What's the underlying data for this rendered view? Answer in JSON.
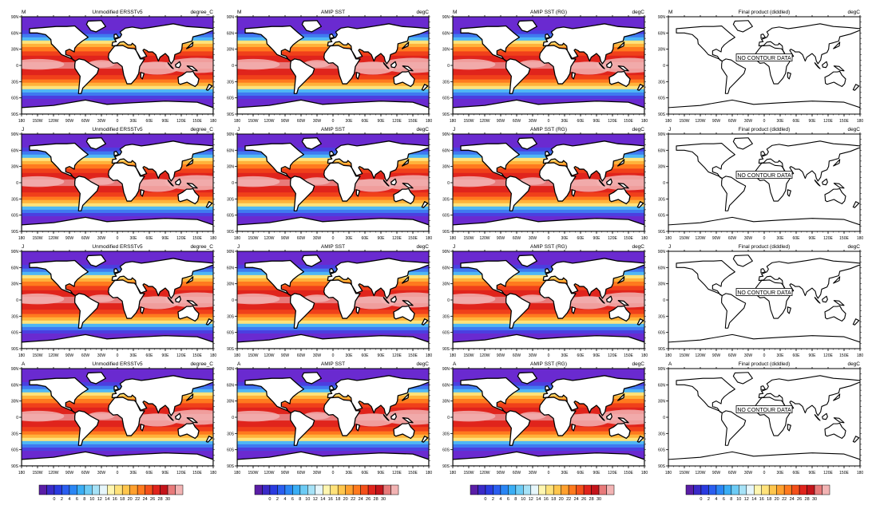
{
  "lat_ticks": [
    "90N",
    "60N",
    "30N",
    "0",
    "30S",
    "60S",
    "90S"
  ],
  "lon_ticks": [
    "180",
    "150W",
    "120W",
    "90W",
    "60W",
    "30W",
    "0",
    "30E",
    "60E",
    "90E",
    "120E",
    "150E",
    "180"
  ],
  "columns": [
    {
      "title": "Unmodified ERSSTv5",
      "units": "degree_C",
      "kind": "sst"
    },
    {
      "title": "AMIP SST",
      "units": "degC",
      "kind": "sst"
    },
    {
      "title": "AMIP SST (RG)",
      "units": "degC",
      "kind": "sst"
    },
    {
      "title": "Final product (diddled)",
      "units": "degC",
      "kind": "empty",
      "message": "NO CONTOUR DATA"
    }
  ],
  "rows": [
    {
      "month": "M"
    },
    {
      "month": "J"
    },
    {
      "month": "J"
    },
    {
      "month": "A"
    }
  ],
  "colorbar": {
    "labels": [
      "0",
      "2",
      "4",
      "6",
      "8",
      "10",
      "12",
      "14",
      "16",
      "18",
      "20",
      "22",
      "24",
      "26",
      "28",
      "30"
    ],
    "colors": [
      "#5a1ea6",
      "#3a2ac8",
      "#2a3be0",
      "#2a5ef0",
      "#2a86f5",
      "#3aaef5",
      "#6ccbf5",
      "#a6e2f7",
      "#e6f6fb",
      "#fff6b0",
      "#ffe27a",
      "#ffc64d",
      "#ffa02e",
      "#ff7a1e",
      "#f4501a",
      "#e0241c",
      "#c4141a",
      "#e87a7a",
      "#f2b3b3"
    ]
  }
}
